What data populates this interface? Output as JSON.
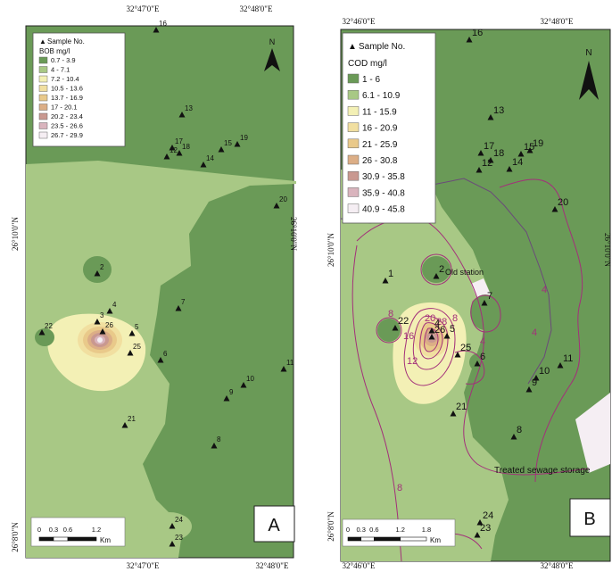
{
  "panelA": {
    "letter": "A",
    "top_coords": [
      "32°47'0\"E",
      "32°48'0\"E"
    ],
    "bottom_coords": [
      "32°47'0\"E",
      "32°48'0\"E"
    ],
    "left_coords": [
      "26°10'0\"N",
      "26°8'0\"N"
    ],
    "right_coords": [
      "26°10'0\"N"
    ],
    "legend": {
      "sample_label": "Sample No.",
      "title": "BOB mg/l",
      "classes": [
        {
          "label": "0.7 - 3.9",
          "color": "#6a9a57"
        },
        {
          "label": "4 - 7.1",
          "color": "#a8c885"
        },
        {
          "label": "7.2 - 10.4",
          "color": "#f3f0b5"
        },
        {
          "label": "10.5 - 13.6",
          "color": "#f1dfa0"
        },
        {
          "label": "13.7 - 16.9",
          "color": "#e9c98a"
        },
        {
          "label": "17 - 20.1",
          "color": "#dcae86"
        },
        {
          "label": "20.2 - 23.4",
          "color": "#c99890"
        },
        {
          "label": "23.5 - 26.6",
          "color": "#d9b4bd"
        },
        {
          "label": "26.7 - 29.9",
          "color": "#f5eef3"
        }
      ]
    },
    "north": "N",
    "scale": {
      "ticks": [
        "0",
        "0.3",
        "0.6",
        "1.2"
      ],
      "unit": "Km"
    },
    "points": [
      "1",
      "2",
      "3",
      "4",
      "5",
      "6",
      "7",
      "8",
      "9",
      "10",
      "11",
      "12",
      "13",
      "14",
      "15",
      "16",
      "17",
      "18",
      "19",
      "20",
      "21",
      "22",
      "23",
      "24",
      "25",
      "26"
    ]
  },
  "panelB": {
    "letter": "B",
    "top_coords": [
      "32°46'0\"E",
      "32°48'0\"E"
    ],
    "bottom_coords": [
      "32°46'0\"E",
      "32°48'0\"E"
    ],
    "left_coords": [
      "26°10'0\"N",
      "26°8'0\"N"
    ],
    "right_coords": [
      "26°10'0\"N"
    ],
    "legend": {
      "sample_label": "Sample No.",
      "title": "COD mg/l",
      "classes": [
        {
          "label": "1 - 6",
          "color": "#6a9a57"
        },
        {
          "label": "6.1 - 10.9",
          "color": "#a8c885"
        },
        {
          "label": "11 - 15.9",
          "color": "#f3f0b5"
        },
        {
          "label": "16 - 20.9",
          "color": "#f1dfa0"
        },
        {
          "label": "21 - 25.9",
          "color": "#e9c98a"
        },
        {
          "label": "26 - 30.8",
          "color": "#dcae86"
        },
        {
          "label": "30.9 - 35.8",
          "color": "#c99890"
        },
        {
          "label": "35.9 - 40.8",
          "color": "#d9b4bd"
        },
        {
          "label": "40.9 - 45.8",
          "color": "#f5eef3"
        }
      ]
    },
    "north": "N",
    "scale": {
      "ticks": [
        "0",
        "0.3",
        "0.6",
        "1.2",
        "1.8"
      ],
      "unit": "Km"
    },
    "annotations": {
      "old_station": "Old station",
      "treated": "Treated sewage storage"
    },
    "contour_labels": [
      "8",
      "16",
      "12",
      "20",
      "28",
      "8",
      "4",
      "4",
      "8",
      "4"
    ],
    "points": [
      "1",
      "2",
      "4",
      "5",
      "6",
      "7",
      "8",
      "9",
      "10",
      "11",
      "12",
      "13",
      "14",
      "15",
      "16",
      "17",
      "18",
      "19",
      "20",
      "21",
      "22",
      "23",
      "24",
      "25",
      "26"
    ]
  }
}
